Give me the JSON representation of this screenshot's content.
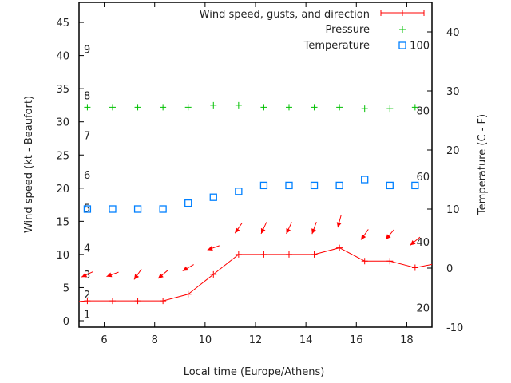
{
  "chart_data": {
    "type": "line",
    "xlabel": "Local time (Europe/Athens)",
    "ylabel": "Wind speed (kt - Beaufort)",
    "y2label": "Temperature (C - F)",
    "xlim": [
      5,
      19
    ],
    "ylim": [
      -1,
      48
    ],
    "y2lim": [
      -10,
      45
    ],
    "xticks": [
      6,
      8,
      10,
      12,
      14,
      16,
      18
    ],
    "yticks": [
      0,
      5,
      10,
      15,
      20,
      25,
      30,
      35,
      40,
      45
    ],
    "y2ticks": [
      -10,
      0,
      10,
      20,
      30,
      40
    ],
    "legend_position": "top-right",
    "legend": {
      "wind": "Wind speed, gusts, and direction",
      "pressure": "Pressure",
      "temperature": "Temperature"
    },
    "x": [
      5.33,
      6.33,
      7.33,
      8.33,
      9.33,
      10.33,
      11.33,
      12.33,
      13.33,
      14.33,
      15.33,
      16.33,
      17.33,
      18.33
    ],
    "series": [
      {
        "name": "Wind speed, gusts, and direction",
        "color": "#ff0000",
        "values": [
          3,
          3,
          3,
          3,
          4,
          7,
          10,
          10,
          10,
          10,
          11,
          9,
          9,
          8
        ],
        "tail_value": 8.5,
        "direction_deg": [
          115,
          110,
          145,
          130,
          120,
          110,
          145,
          155,
          155,
          160,
          165,
          145,
          140,
          130
        ]
      },
      {
        "name": "Pressure",
        "color": "#00c000",
        "values": [
          32.2,
          32.2,
          32.2,
          32.2,
          32.2,
          32.5,
          32.5,
          32.2,
          32.2,
          32.2,
          32.2,
          32.0,
          32.0,
          32.2
        ]
      },
      {
        "name": "Temperature",
        "color": "#0080ff",
        "axis": "y2",
        "values": [
          10,
          10,
          10,
          10,
          11,
          12,
          13,
          14,
          14,
          14,
          14,
          15,
          14,
          14
        ]
      }
    ],
    "beaufort_labels": [
      {
        "label": "1",
        "kt": 1
      },
      {
        "label": "2",
        "kt": 4
      },
      {
        "label": "3",
        "kt": 7
      },
      {
        "label": "4",
        "kt": 11
      },
      {
        "label": "5",
        "kt": 17
      },
      {
        "label": "6",
        "kt": 22
      },
      {
        "label": "7",
        "kt": 28
      },
      {
        "label": "8",
        "kt": 34
      },
      {
        "label": "9",
        "kt": 41
      }
    ],
    "fahrenheit_labels": [
      {
        "label": "20",
        "f": 20
      },
      {
        "label": "40",
        "f": 40
      },
      {
        "label": "60",
        "f": 60
      },
      {
        "label": "80",
        "f": 80
      },
      {
        "label": "100",
        "f": 100
      }
    ]
  }
}
